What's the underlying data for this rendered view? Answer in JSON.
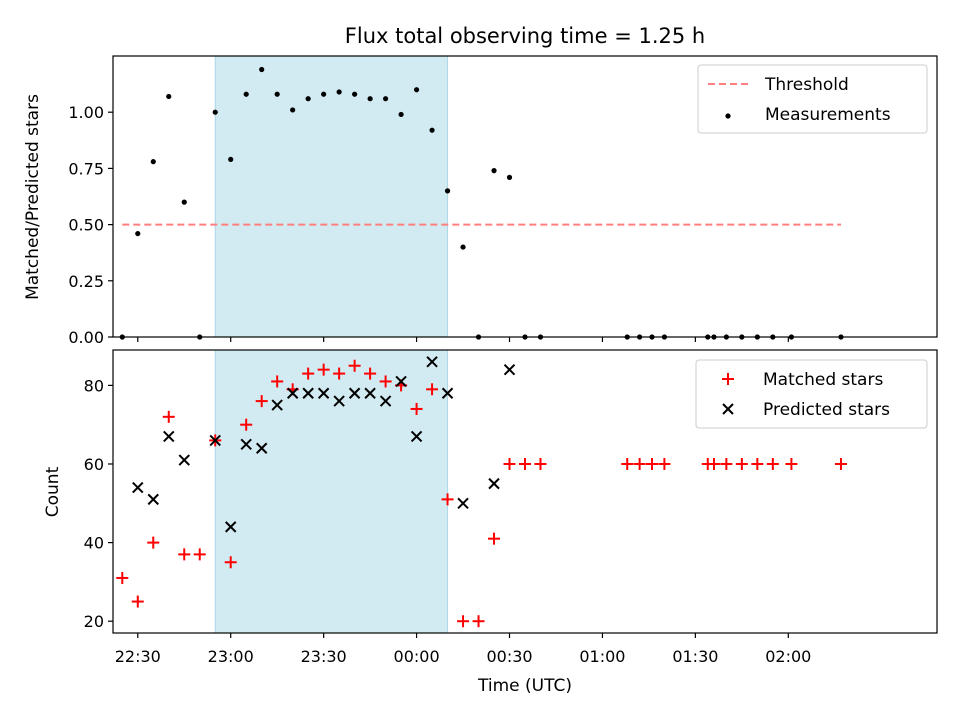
{
  "title": "Flux total observing time = 1.25 h",
  "xlabel": "Time (UTC)",
  "colors": {
    "threshold": "#ff7f7f",
    "measurement": "#000000",
    "matched": "#ff0000",
    "predicted": "#000000",
    "highlight": "#add8e6"
  },
  "xticks": [
    "22:30",
    "23:00",
    "23:30",
    "00:00",
    "00:30",
    "01:00",
    "01:30",
    "02:00"
  ],
  "chart_data": [
    {
      "type": "scatter",
      "ylabel": "Matched/Predicted stars",
      "xlim": [
        "22:22",
        "02:48"
      ],
      "ylim": [
        0,
        1.25
      ],
      "yticks": [
        "0.00",
        "0.25",
        "0.50",
        "0.75",
        "1.00"
      ],
      "highlight_span": [
        "22:55",
        "00:10"
      ],
      "threshold": {
        "name": "Threshold",
        "y": 0.5,
        "x_start": "22:25",
        "x_end": "02:17"
      },
      "series": [
        {
          "name": "Measurements",
          "marker": "dot",
          "x": [
            "22:25",
            "22:30",
            "22:35",
            "22:40",
            "22:45",
            "22:50",
            "22:55",
            "23:00",
            "23:05",
            "23:10",
            "23:15",
            "23:20",
            "23:25",
            "23:30",
            "23:35",
            "23:40",
            "23:45",
            "23:50",
            "23:55",
            "00:00",
            "00:05",
            "00:10",
            "00:15",
            "00:20",
            "00:25",
            "00:30",
            "00:35",
            "00:40",
            "01:08",
            "01:12",
            "01:16",
            "01:20",
            "01:34",
            "01:36",
            "01:40",
            "01:45",
            "01:50",
            "01:55",
            "02:01",
            "02:17"
          ],
          "y": [
            0,
            0.46,
            0.78,
            1.07,
            0.6,
            0,
            1.0,
            0.79,
            1.08,
            1.19,
            1.08,
            1.01,
            1.06,
            1.08,
            1.09,
            1.08,
            1.06,
            1.06,
            0.99,
            1.1,
            0.92,
            0.65,
            0.4,
            0,
            0.74,
            0.71,
            0,
            0,
            0,
            0,
            0,
            0,
            0,
            0,
            0,
            0,
            0,
            0,
            0,
            0
          ]
        }
      ]
    },
    {
      "type": "scatter",
      "ylabel": "Count",
      "xlim": [
        "22:22",
        "02:48"
      ],
      "ylim": [
        17,
        89
      ],
      "yticks": [
        "20",
        "40",
        "60",
        "80"
      ],
      "highlight_span": [
        "22:55",
        "00:10"
      ],
      "series": [
        {
          "name": "Matched stars",
          "marker": "plus",
          "x": [
            "22:25",
            "22:30",
            "22:35",
            "22:40",
            "22:45",
            "22:50",
            "22:55",
            "23:00",
            "23:05",
            "23:10",
            "23:15",
            "23:20",
            "23:25",
            "23:30",
            "23:35",
            "23:40",
            "23:45",
            "23:50",
            "23:55",
            "00:00",
            "00:05",
            "00:10",
            "00:15",
            "00:20",
            "00:25",
            "00:30",
            "00:35",
            "00:40",
            "01:08",
            "01:12",
            "01:16",
            "01:20",
            "01:34",
            "01:36",
            "01:40",
            "01:45",
            "01:50",
            "01:55",
            "02:01",
            "02:17"
          ],
          "y": [
            31,
            25,
            40,
            72,
            37,
            37,
            66,
            35,
            70,
            76,
            81,
            79,
            83,
            84,
            83,
            85,
            83,
            81,
            80,
            74,
            79,
            51,
            20,
            20,
            41,
            60,
            60,
            60,
            60,
            60,
            60,
            60,
            60,
            60,
            60,
            60,
            60,
            60,
            60,
            60
          ]
        },
        {
          "name": "Predicted stars",
          "marker": "x",
          "x": [
            "22:30",
            "22:35",
            "22:40",
            "22:45",
            "22:55",
            "23:00",
            "23:05",
            "23:10",
            "23:15",
            "23:20",
            "23:25",
            "23:30",
            "23:35",
            "23:40",
            "23:45",
            "23:50",
            "23:55",
            "00:00",
            "00:05",
            "00:10",
            "00:15",
            "00:25",
            "00:30"
          ],
          "y": [
            54,
            51,
            67,
            61,
            66,
            44,
            65,
            64,
            75,
            78,
            78,
            78,
            76,
            78,
            78,
            76,
            81,
            67,
            86,
            78,
            50,
            55,
            84
          ]
        }
      ]
    }
  ]
}
